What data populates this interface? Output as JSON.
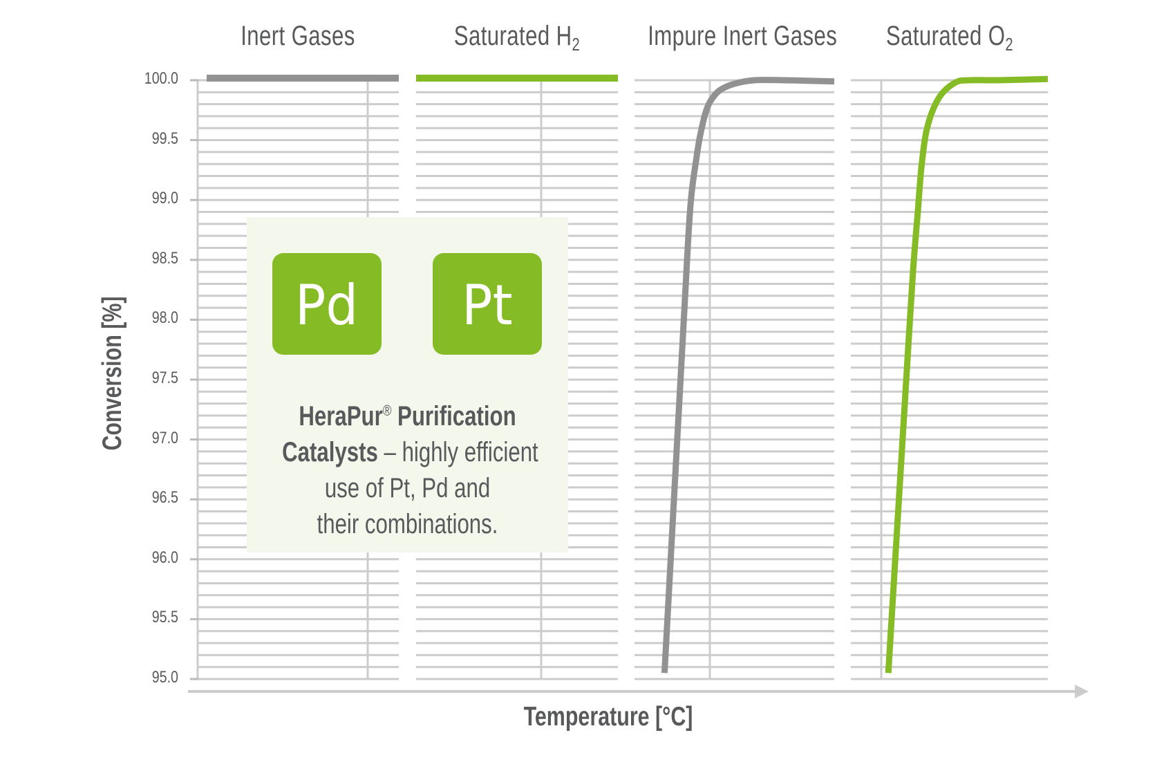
{
  "colors": {
    "grid": "#cbcccb",
    "axis": "#cbcccb",
    "gray_series": "#919291",
    "green_series": "#85bb24",
    "text": "#58595b",
    "box_bg": "#f3f7ec",
    "tile_bg": "#85bb24"
  },
  "panels": [
    {
      "title": "Inert Gases",
      "title_main": "Inert Gases",
      "title_sub": ""
    },
    {
      "title": "Saturated H2",
      "title_main": "Saturated H",
      "title_sub": "2"
    },
    {
      "title": "Impure Inert Gases",
      "title_main": "Impure Inert Gases",
      "title_sub": ""
    },
    {
      "title": "Saturated O2",
      "title_main": "Saturated O",
      "title_sub": "2"
    }
  ],
  "axes": {
    "y_title": "Conversion [%]",
    "x_title": "Temperature [°C]",
    "y_ticks": [
      "100.0",
      "99.5",
      "99.0",
      "98.5",
      "98.0",
      "97.5",
      "97.0",
      "96.5",
      "96.0",
      "95.5",
      "95.0"
    ]
  },
  "info_box": {
    "tiles": [
      "Pd",
      "Pt"
    ],
    "line1_bold": "HeraPur",
    "line1_reg_mark": "®",
    "line1_bold_rest": " Purification",
    "line2_bold": "Catalysts",
    "line2_rest": " – highly efficient",
    "line3": "use of Pt, Pd and",
    "line4": "their combinations."
  },
  "chart_data": {
    "type": "line",
    "title": "",
    "xlabel": "Temperature [°C]",
    "ylabel": "Conversion [%]",
    "ylim": [
      95.0,
      100.0
    ],
    "y_ticks": [
      100.0,
      99.5,
      99.0,
      98.5,
      98.0,
      97.5,
      97.0,
      96.5,
      96.0,
      95.5,
      95.0
    ],
    "grid": {
      "horizontal_step": 0.1,
      "on": true
    },
    "x_ticks": "none (arrow axis, no values)",
    "panels": [
      {
        "name": "Inert Gases",
        "color": "#919291",
        "description": "Flat line at 100.0% conversion across entire temperature range",
        "x_rel": [
          0.0,
          1.0
        ],
        "y": [
          100.0,
          100.0
        ]
      },
      {
        "name": "Saturated H2",
        "color": "#85bb24",
        "description": "Flat line at 100.0% conversion across entire temperature range",
        "x_rel": [
          0.0,
          1.0
        ],
        "y": [
          100.0,
          100.0
        ]
      },
      {
        "name": "Impure Inert Gases",
        "color": "#919291",
        "description": "Steep S-rise from 95.0% near low temperature to ~100.0% plateau",
        "x_rel": [
          0.15,
          0.25,
          0.28,
          0.31,
          0.33,
          0.36,
          0.39,
          0.43,
          0.5,
          0.6,
          0.75,
          1.0
        ],
        "y": [
          95.05,
          98.1,
          98.95,
          99.35,
          99.55,
          99.75,
          99.85,
          99.92,
          99.97,
          100.0,
          100.0,
          99.99
        ]
      },
      {
        "name": "Saturated O2",
        "color": "#85bb24",
        "description": "Steep rise from 95.0% to 100.0%, sharper knee than impure inert gases",
        "x_rel": [
          0.19,
          0.3,
          0.32,
          0.34,
          0.36,
          0.39,
          0.45,
          0.53,
          0.6,
          0.75,
          1.0
        ],
        "y": [
          95.05,
          98.0,
          98.5,
          98.9,
          99.3,
          99.62,
          99.86,
          99.98,
          100.0,
          100.0,
          100.01
        ]
      }
    ]
  }
}
